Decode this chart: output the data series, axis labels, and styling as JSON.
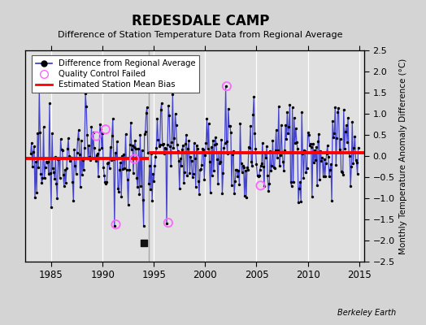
{
  "title": "REDESDALE CAMP",
  "subtitle": "Difference of Station Temperature Data from Regional Average",
  "ylabel": "Monthly Temperature Anomaly Difference (°C)",
  "xlim": [
    1982.5,
    2015.5
  ],
  "ylim": [
    -2.5,
    2.5
  ],
  "xticks": [
    1985,
    1990,
    1995,
    2000,
    2005,
    2010,
    2015
  ],
  "yticks": [
    -2.5,
    -2,
    -1.5,
    -1,
    -0.5,
    0,
    0.5,
    1,
    1.5,
    2,
    2.5
  ],
  "plot_bg_color": "#e0e0e0",
  "fig_bg_color": "#d4d4d4",
  "grid_color": "#ffffff",
  "mean_bias_before": -0.05,
  "mean_bias_after": 0.08,
  "break_year": 1994.5,
  "empirical_break_x": 1994.0,
  "empirical_break_y": -2.05,
  "vertical_line_x": 1994.5,
  "qc_failed_points": [
    [
      1989.4,
      0.47
    ],
    [
      1990.3,
      0.63
    ],
    [
      1991.3,
      -1.62
    ],
    [
      1993.1,
      -0.07
    ],
    [
      1996.4,
      -1.58
    ],
    [
      2002.1,
      1.65
    ],
    [
      2005.4,
      -0.7
    ]
  ],
  "line_color": "#3333cc",
  "dot_color": "#000000",
  "bias_color": "#ff0000",
  "qc_color": "#ff66ff",
  "berkeley_earth_text": "Berkeley Earth"
}
